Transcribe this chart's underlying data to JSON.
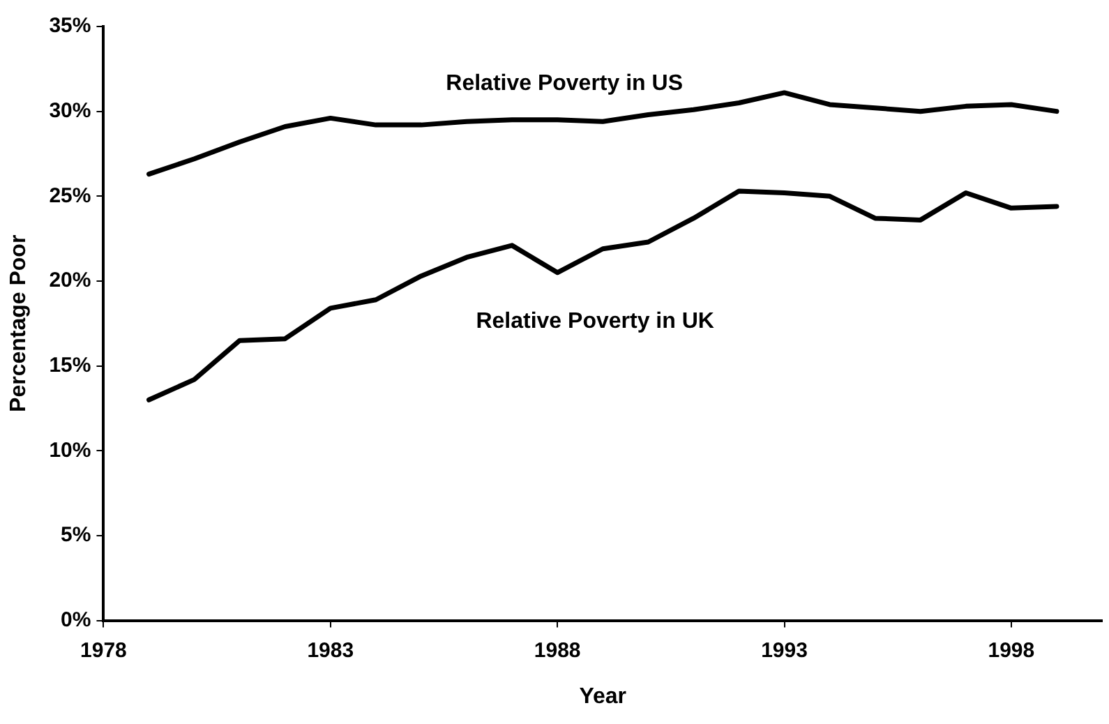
{
  "chart_data": {
    "type": "line",
    "xlabel": "Year",
    "ylabel": "Percentage Poor",
    "x": [
      1979,
      1980,
      1981,
      1982,
      1983,
      1984,
      1985,
      1986,
      1987,
      1988,
      1989,
      1990,
      1991,
      1992,
      1993,
      1994,
      1995,
      1996,
      1997,
      1998,
      1999
    ],
    "series": [
      {
        "name": "Relative Poverty in US",
        "color": "#000000",
        "values": [
          26.3,
          27.2,
          28.2,
          29.1,
          29.6,
          29.2,
          29.2,
          29.4,
          29.5,
          29.5,
          29.4,
          29.8,
          30.1,
          30.5,
          31.1,
          30.4,
          30.2,
          30.0,
          30.3,
          30.4,
          30.0
        ]
      },
      {
        "name": "Relative Poverty in UK",
        "color": "#000000",
        "values": [
          13.0,
          14.2,
          16.5,
          16.6,
          18.4,
          18.9,
          20.3,
          21.4,
          22.1,
          20.5,
          21.9,
          22.3,
          23.7,
          25.3,
          25.2,
          25.0,
          23.7,
          23.6,
          25.2,
          24.3,
          24.4
        ]
      }
    ],
    "xlim": [
      1978,
      2000
    ],
    "xticks": [
      1978,
      1983,
      1988,
      1993,
      1998
    ],
    "ylim": [
      0,
      35
    ],
    "yticks": [
      {
        "value": 0,
        "label": "0%"
      },
      {
        "value": 5,
        "label": "5%"
      },
      {
        "value": 10,
        "label": "10%"
      },
      {
        "value": 15,
        "label": "15%"
      },
      {
        "value": 20,
        "label": "20%"
      },
      {
        "value": 25,
        "label": "25%"
      },
      {
        "value": 30,
        "label": "30%"
      },
      {
        "value": 35,
        "label": "35%"
      }
    ],
    "grid": false,
    "legend": false,
    "marker": "none",
    "line_style": "solid"
  }
}
